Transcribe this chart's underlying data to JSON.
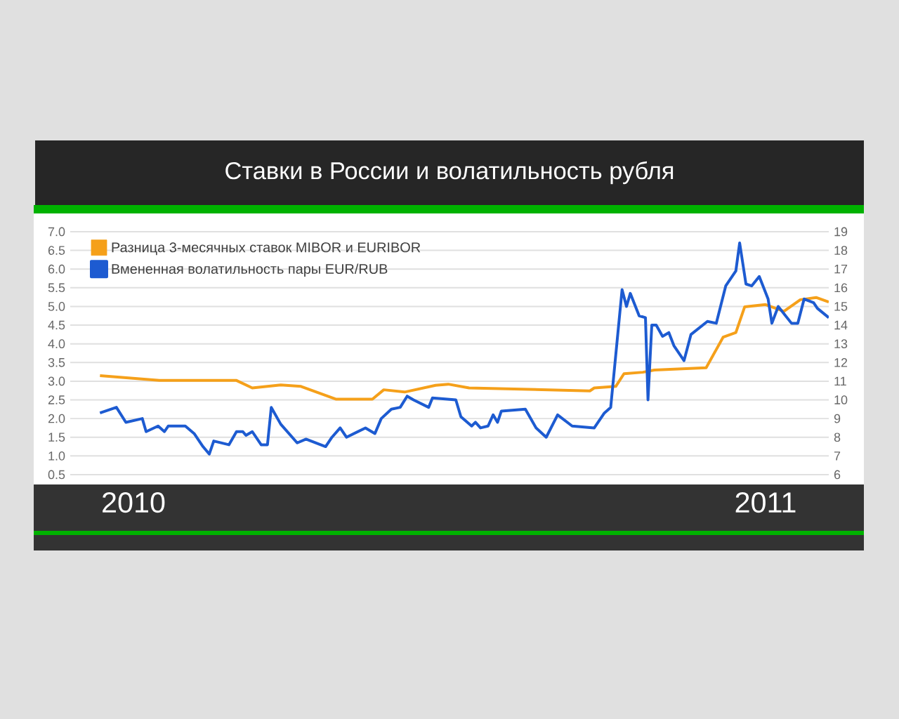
{
  "chart_data": {
    "type": "line",
    "title": "Ставки в России и волатильность рубля",
    "xlim": [
      2009.9,
      2011.1
    ],
    "xticks": [
      {
        "value": 2010,
        "label": "2010"
      },
      {
        "value": 2011,
        "label": "2011"
      }
    ],
    "ylim": [
      0.5,
      7.0
    ],
    "yticks": [
      {
        "value": 0.5,
        "label": "0.5"
      },
      {
        "value": 1.0,
        "label": "1.0"
      },
      {
        "value": 1.5,
        "label": "1.5"
      },
      {
        "value": 2.0,
        "label": "2.0"
      },
      {
        "value": 2.5,
        "label": "2.5"
      },
      {
        "value": 3.0,
        "label": "3.0"
      },
      {
        "value": 3.5,
        "label": "3.5"
      },
      {
        "value": 4.0,
        "label": "4.0"
      },
      {
        "value": 4.5,
        "label": "4.5"
      },
      {
        "value": 5.0,
        "label": "5.0"
      },
      {
        "value": 5.5,
        "label": "5.5"
      },
      {
        "value": 6.0,
        "label": "6.0"
      },
      {
        "value": 6.5,
        "label": "6.5"
      },
      {
        "value": 7.0,
        "label": "7.0"
      }
    ],
    "y2lim": [
      6,
      19
    ],
    "y2ticks": [
      6,
      7,
      8,
      9,
      10,
      11,
      12,
      13,
      14,
      15,
      16,
      17,
      18,
      19
    ],
    "grid": "y",
    "legend": "top left",
    "series": [
      {
        "name": "Разница 3-месячных ставок MIBOR и EURIBOR",
        "color": "#f5a01a",
        "x": [
          2009.947,
          2010.041,
          2010.163,
          2010.188,
          2010.233,
          2010.265,
          2010.32,
          2010.378,
          2010.396,
          2010.429,
          2010.478,
          2010.498,
          2010.531,
          2010.722,
          2010.729,
          2010.763,
          2010.776,
          2010.806,
          2010.824,
          2010.906,
          2010.933,
          2010.953,
          2010.967,
          2011.0,
          2011.029,
          2011.055,
          2011.08,
          2011.1
        ],
        "values": [
          3.15,
          3.02,
          3.02,
          2.82,
          2.9,
          2.86,
          2.52,
          2.52,
          2.77,
          2.71,
          2.89,
          2.92,
          2.82,
          2.74,
          2.82,
          2.86,
          3.2,
          3.24,
          3.3,
          3.36,
          4.18,
          4.3,
          4.99,
          5.05,
          4.87,
          5.18,
          5.24,
          5.12
        ]
      },
      {
        "name": "Вмененная волатильность пары EUR/RUB",
        "color": "#1d5bd1",
        "axis": "y2",
        "x": [
          2009.947,
          2009.973,
          2009.988,
          2010.014,
          2010.02,
          2010.039,
          2010.049,
          2010.055,
          2010.082,
          2010.096,
          2010.11,
          2010.12,
          2010.127,
          2010.151,
          2010.163,
          2010.173,
          2010.178,
          2010.188,
          2010.202,
          2010.212,
          2010.218,
          2010.233,
          2010.259,
          2010.273,
          2010.304,
          2010.314,
          2010.327,
          2010.337,
          2010.367,
          2010.382,
          2010.392,
          2010.408,
          2010.422,
          2010.433,
          2010.443,
          2010.467,
          2010.473,
          2010.51,
          2010.518,
          2010.535,
          2010.541,
          2010.549,
          2010.561,
          2010.569,
          2010.576,
          2010.582,
          2010.62,
          2010.637,
          2010.653,
          2010.671,
          2010.694,
          2010.729,
          2010.745,
          2010.755,
          2010.773,
          2010.78,
          2010.786,
          2010.8,
          2010.81,
          2010.814,
          2010.82,
          2010.827,
          2010.837,
          2010.847,
          2010.855,
          2010.871,
          2010.882,
          2010.908,
          2010.922,
          2010.937,
          2010.953,
          2010.959,
          2010.969,
          2010.978,
          2010.99,
          2011.004,
          2011.01,
          2011.02,
          2011.041,
          2011.051,
          2011.061,
          2011.076,
          2011.082,
          2011.1
        ],
        "values": [
          9.3,
          9.6,
          8.8,
          9.0,
          8.3,
          8.6,
          8.3,
          8.6,
          8.6,
          8.2,
          7.5,
          7.1,
          7.8,
          7.6,
          8.3,
          8.3,
          8.1,
          8.3,
          7.6,
          7.6,
          9.6,
          8.7,
          7.7,
          7.9,
          7.5,
          8.0,
          8.5,
          8.0,
          8.5,
          8.2,
          9.0,
          9.5,
          9.6,
          10.2,
          10.0,
          9.6,
          10.1,
          10.0,
          9.1,
          8.6,
          8.8,
          8.5,
          8.6,
          9.2,
          8.8,
          9.4,
          9.5,
          8.5,
          8.0,
          9.2,
          8.6,
          8.5,
          9.3,
          9.6,
          15.9,
          15.0,
          15.7,
          14.5,
          14.4,
          10.0,
          14.0,
          14.0,
          13.4,
          13.6,
          12.9,
          12.1,
          13.5,
          14.2,
          14.1,
          16.1,
          16.9,
          18.4,
          16.2,
          16.1,
          16.6,
          15.4,
          14.1,
          15.0,
          14.1,
          14.1,
          15.4,
          15.2,
          14.9,
          14.4
        ]
      }
    ]
  }
}
